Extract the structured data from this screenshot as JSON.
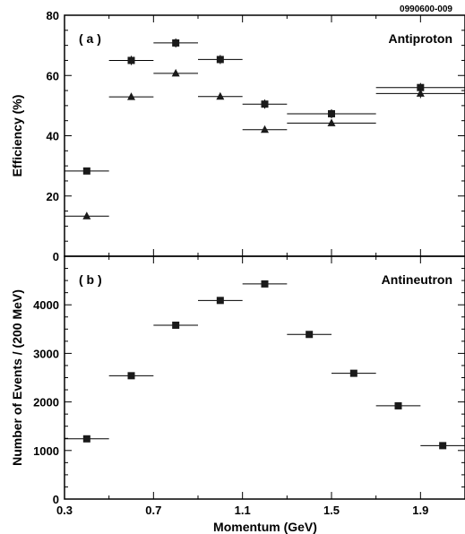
{
  "figure_id": "0990600-009",
  "xlabel": "Momentum (GeV)",
  "chart_data": [
    {
      "type": "scatter",
      "panel_label": "( a )",
      "title": "Antiproton",
      "ylabel": "Efficiency (%)",
      "xlim": [
        0.3,
        2.1
      ],
      "ylim": [
        0,
        80
      ],
      "x_ticks": [
        "0.3",
        "0.7",
        "1.1",
        "1.5",
        "1.9"
      ],
      "y_ticks": [
        "0",
        "20",
        "40",
        "60",
        "80"
      ],
      "series": [
        {
          "marker": "square",
          "points": [
            {
              "x": 0.4,
              "y": 28.3,
              "xerr": 0.1,
              "yerr": 0.8
            },
            {
              "x": 0.6,
              "y": 65.0,
              "xerr": 0.1,
              "yerr": 1.5
            },
            {
              "x": 0.8,
              "y": 70.8,
              "xerr": 0.1,
              "yerr": 1.5
            },
            {
              "x": 1.0,
              "y": 65.3,
              "xerr": 0.1,
              "yerr": 1.5
            },
            {
              "x": 1.2,
              "y": 50.5,
              "xerr": 0.1,
              "yerr": 1.5
            },
            {
              "x": 1.5,
              "y": 47.3,
              "xerr": 0.2,
              "yerr": 1.5
            },
            {
              "x": 1.9,
              "y": 56.0,
              "xerr": 0.2,
              "yerr": 1.5
            }
          ]
        },
        {
          "marker": "triangle",
          "points": [
            {
              "x": 0.4,
              "y": 13.3,
              "xerr": 0.1,
              "yerr": 0.5
            },
            {
              "x": 0.6,
              "y": 52.9,
              "xerr": 0.1,
              "yerr": 0.5
            },
            {
              "x": 0.8,
              "y": 60.7,
              "xerr": 0.1,
              "yerr": 0.5
            },
            {
              "x": 1.0,
              "y": 53.0,
              "xerr": 0.1,
              "yerr": 0.5
            },
            {
              "x": 1.2,
              "y": 42.0,
              "xerr": 0.1,
              "yerr": 0.5
            },
            {
              "x": 1.5,
              "y": 44.2,
              "xerr": 0.2,
              "yerr": 0.5
            },
            {
              "x": 1.9,
              "y": 54.0,
              "xerr": 0.2,
              "yerr": 1.5
            }
          ]
        }
      ]
    },
    {
      "type": "scatter",
      "panel_label": "( b )",
      "title": "Antineutron",
      "ylabel": "Number of Events / (200 MeV)",
      "xlim": [
        0.3,
        2.1
      ],
      "ylim": [
        0,
        5000
      ],
      "x_ticks": [
        "0.3",
        "0.7",
        "1.1",
        "1.5",
        "1.9"
      ],
      "y_ticks": [
        "0",
        "1000",
        "2000",
        "3000",
        "4000"
      ],
      "series": [
        {
          "marker": "square",
          "points": [
            {
              "x": 0.4,
              "y": 1240,
              "xerr": 0.1
            },
            {
              "x": 0.6,
              "y": 2540,
              "xerr": 0.1
            },
            {
              "x": 0.8,
              "y": 3580,
              "xerr": 0.1
            },
            {
              "x": 1.0,
              "y": 4090,
              "xerr": 0.1
            },
            {
              "x": 1.2,
              "y": 4430,
              "xerr": 0.1
            },
            {
              "x": 1.4,
              "y": 3390,
              "xerr": 0.1
            },
            {
              "x": 1.6,
              "y": 2590,
              "xerr": 0.1
            },
            {
              "x": 1.8,
              "y": 1920,
              "xerr": 0.1
            },
            {
              "x": 2.0,
              "y": 1100,
              "xerr": 0.1
            }
          ]
        }
      ]
    }
  ]
}
